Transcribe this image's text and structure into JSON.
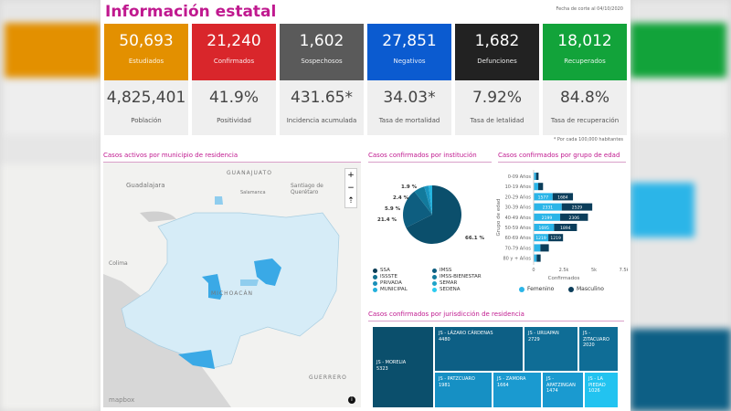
{
  "title": "Información estatal",
  "date_note": "Fecha de corte al 04/10/2020",
  "footnote": "* Por cada 100,000 habitantes",
  "cards": [
    {
      "value": "50,693",
      "label": "Estudiados",
      "color": "#e39000",
      "sub_value": "4,825,401",
      "sub_label": "Población"
    },
    {
      "value": "21,240",
      "label": "Confirmados",
      "color": "#d9262b",
      "sub_value": "41.9%",
      "sub_label": "Positividad"
    },
    {
      "value": "1,602",
      "label": "Sospechosos",
      "color": "#5a5a5a",
      "sub_value": "431.65*",
      "sub_label": "Incidencia acumulada"
    },
    {
      "value": "27,851",
      "label": "Negativos",
      "color": "#0b5bd0",
      "sub_value": "34.03*",
      "sub_label": "Tasa de mortalidad"
    },
    {
      "value": "1,682",
      "label": "Defunciones",
      "color": "#222222",
      "sub_value": "7.92%",
      "sub_label": "Tasa de letalidad"
    },
    {
      "value": "18,012",
      "label": "Recuperados",
      "color": "#12a33a",
      "sub_value": "84.8%",
      "sub_label": "Tasa de recuperación"
    }
  ],
  "map": {
    "title": "Casos activos por municipio de residencia",
    "labels": [
      "GUANAJUATO",
      "Guadalajara",
      "Santiago de Querétaro",
      "Salamanca",
      "MICHOACÁN",
      "Colima",
      "GUERRERO"
    ],
    "zoom_in": "+",
    "zoom_out": "−",
    "compass": "⇡",
    "logo": "mapbox",
    "info": "i"
  },
  "institution": {
    "title": "Casos confirmados por institución",
    "slices": [
      {
        "label": "66.1 %",
        "value": 66.1,
        "color": "#0b4f6c"
      },
      {
        "label": "21.4 %",
        "value": 21.4,
        "color": "#0e5e80"
      },
      {
        "label": "5.9 %",
        "value": 5.9,
        "color": "#127a9c"
      },
      {
        "label": "2.4 %",
        "value": 2.4,
        "color": "#1a95c0"
      },
      {
        "label": "1.9 %",
        "value": 1.9,
        "color": "#23b5e0"
      }
    ],
    "legend": [
      {
        "name": "SSA",
        "color": "#0b3d55"
      },
      {
        "name": "IMSS",
        "color": "#0e5e80"
      },
      {
        "name": "ISSSTE",
        "color": "#11708f"
      },
      {
        "name": "IMSS-BIENESTAR",
        "color": "#127a9c"
      },
      {
        "name": "PRIVADA",
        "color": "#1a8fb8"
      },
      {
        "name": "SEMAR",
        "color": "#1fa3c8"
      },
      {
        "name": "MUNICIPAL",
        "color": "#23b0dc"
      },
      {
        "name": "SEDENA",
        "color": "#2ccbf0"
      }
    ]
  },
  "chart_data": {
    "type": "bar",
    "title": "Casos confirmados por grupo de edad",
    "ylabel": "Grupo de edad",
    "xlabel": "Confirmados",
    "categories": [
      "0-09 Años",
      "10-19 Años",
      "20-29 Años",
      "30-39 Años",
      "40-49 Años",
      "50-59 Años",
      "60-69 Años",
      "70-79 Años",
      "80 y + Años"
    ],
    "xticks": [
      "0",
      "2.5k",
      "5k",
      "7.5k"
    ],
    "xlim": [
      0,
      7500
    ],
    "series": [
      {
        "name": "Femenino",
        "color": "#2bb5e8",
        "values": [
          200,
          380,
          1577,
          2331,
          2199,
          1695,
          1219,
          560,
          250
        ]
      },
      {
        "name": "Masculino",
        "color": "#0b3d5a",
        "values": [
          210,
          400,
          1684,
          2529,
          2306,
          1894,
          1219,
          700,
          330
        ]
      }
    ]
  },
  "jurisdiction": {
    "title": "Casos confirmados por jurisdicción de residencia",
    "tiles": [
      {
        "name": "JS - MORELIA",
        "value": "5323",
        "color": "#0b4f6c"
      },
      {
        "name": "JS - LÁZARO CÁRDENAS",
        "value": "4480",
        "color": "#0d5f85"
      },
      {
        "name": "JS - URUAPAN",
        "value": "2729",
        "color": "#0f6d96"
      },
      {
        "name": "JS - ZITACUARO",
        "value": "2020",
        "color": "#0f6d96"
      },
      {
        "name": "JS - PATZCUARO",
        "value": "1981",
        "color": "#1690c4"
      },
      {
        "name": "JS - ZAMORA",
        "value": "1664",
        "color": "#1a9ad0"
      },
      {
        "name": "JS - APATZINGAN",
        "value": "1474",
        "color": "#1a9ad0"
      },
      {
        "name": "JS - LA PIEDAD",
        "value": "1026",
        "color": "#22c3f0"
      }
    ]
  }
}
